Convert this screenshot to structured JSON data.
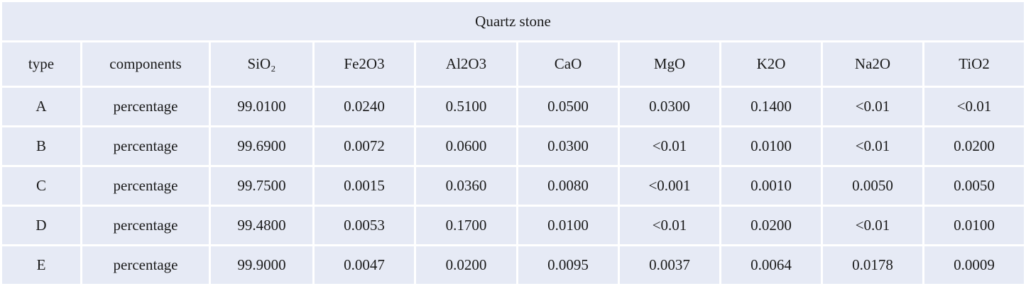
{
  "table": {
    "title": "Quartz stone",
    "header": [
      "type",
      "components",
      "SiO₂",
      "Fe2O3",
      "Al2O3",
      "CaO",
      "MgO",
      "K2O",
      "Na2O",
      "TiO2"
    ],
    "rows": [
      [
        "A",
        "percentage",
        "99.0100",
        "0.0240",
        "0.5100",
        "0.0500",
        "0.0300",
        "0.1400",
        "<0.01",
        "<0.01"
      ],
      [
        "B",
        "percentage",
        "99.6900",
        "0.0072",
        "0.0600",
        "0.0300",
        "<0.01",
        "0.0100",
        "<0.01",
        "0.0200"
      ],
      [
        "C",
        "percentage",
        "99.7500",
        "0.0015",
        "0.0360",
        "0.0080",
        "<0.001",
        "0.0010",
        "0.0050",
        "0.0050"
      ],
      [
        "D",
        "percentage",
        "99.4800",
        "0.0053",
        "0.1700",
        "0.0100",
        "<0.01",
        "0.0200",
        "<0.01",
        "0.0100"
      ],
      [
        "E",
        "percentage",
        "99.9000",
        "0.0047",
        "0.0200",
        "0.0095",
        "0.0037",
        "0.0064",
        "0.0178",
        "0.0009"
      ]
    ]
  }
}
